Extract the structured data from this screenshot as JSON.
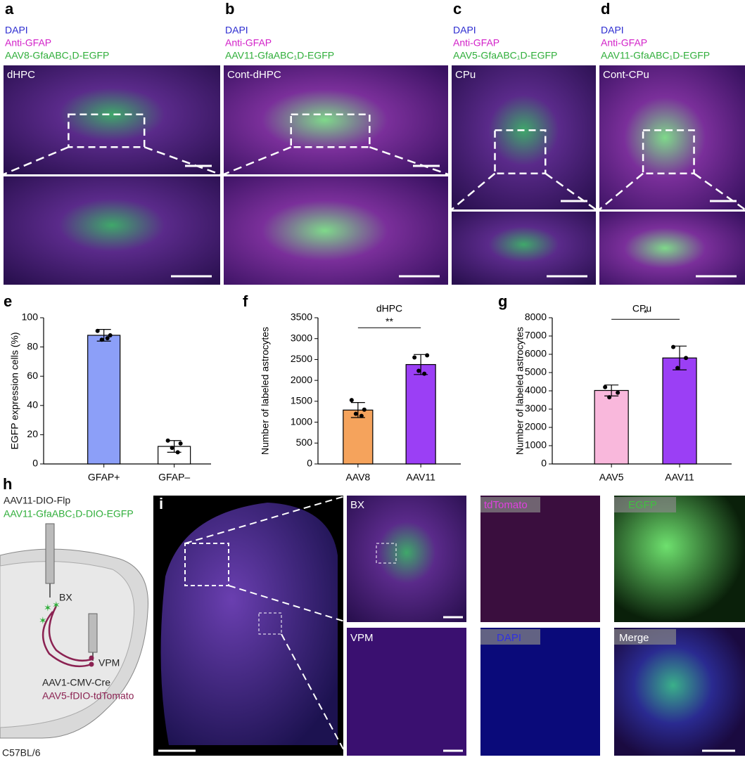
{
  "panels": {
    "a": {
      "letter": "a",
      "lines": [
        "DAPI",
        "Anti-GFAP",
        "AAV8-GfaABC₁D-EGFP"
      ],
      "region": "dHPC"
    },
    "b": {
      "letter": "b",
      "lines": [
        "DAPI",
        "Anti-GFAP",
        "AAV11-GfaABC₁D-EGFP"
      ],
      "region": "Cont-dHPC"
    },
    "c": {
      "letter": "c",
      "lines": [
        "DAPI",
        "Anti-GFAP",
        "AAV5-GfaABC₁D-EGFP"
      ],
      "region": "CPu"
    },
    "d": {
      "letter": "d",
      "lines": [
        "DAPI",
        "Anti-GFAP",
        "AAV11-GfaABC₁D-EGFP"
      ],
      "region": "Cont-CPu"
    },
    "h": {
      "letter": "h",
      "virus_1": "AAV11-DIO-Flp",
      "virus_2": "AAV11-GfaABC₁D-DIO-EGFP",
      "site_1": "BX",
      "site_2": "VPM",
      "virus_3": "AAV1-CMV-Cre",
      "virus_4": "AAV5-fDIO-tdTomato",
      "strain": "C57BL/6"
    },
    "i": {
      "letter": "i",
      "labels": [
        "BX",
        "tdTomato",
        "EGFP",
        "VPM",
        "DAPI",
        "Merge"
      ]
    }
  },
  "chart_data": [
    {
      "type": "bar",
      "panel": "e",
      "ylabel": "EGFP expression cells (%)",
      "categories": [
        "GFAP+",
        "GFAP–"
      ],
      "values": [
        88,
        12
      ],
      "errors": [
        4,
        4
      ],
      "points": [
        [
          91,
          88,
          85,
          86
        ],
        [
          16,
          14,
          11,
          8
        ]
      ],
      "colors": [
        "#8c9ff8",
        "#ffffff"
      ],
      "ylim": [
        0,
        100
      ],
      "yticks": [
        0,
        20,
        40,
        60,
        80,
        100
      ]
    },
    {
      "type": "bar",
      "panel": "f",
      "title": "dHPC",
      "ylabel": "Number of labeled astrocytes",
      "categories": [
        "AAV8",
        "AAV11"
      ],
      "values": [
        1290,
        2380
      ],
      "errors": [
        180,
        240
      ],
      "points": [
        [
          1530,
          1300,
          1200,
          1150
        ],
        [
          2550,
          2600,
          2230,
          2160
        ]
      ],
      "colors": [
        "#f5a35c",
        "#9b3ff5"
      ],
      "significance": "**",
      "ylim": [
        0,
        3500
      ],
      "yticks": [
        0,
        500,
        1000,
        1500,
        2000,
        2500,
        3000,
        3500
      ]
    },
    {
      "type": "bar",
      "panel": "g",
      "title": "CPu",
      "ylabel": "Number of labeled astrocytes",
      "categories": [
        "AAV5",
        "AAV11"
      ],
      "values": [
        4020,
        5800
      ],
      "errors": [
        300,
        650
      ],
      "points": [
        [
          4200,
          3900,
          3650
        ],
        [
          6400,
          5800,
          5250
        ]
      ],
      "colors": [
        "#f9b8dc",
        "#9b3ff5"
      ],
      "significance": "*",
      "ylim": [
        0,
        8000
      ],
      "yticks": [
        0,
        1000,
        2000,
        3000,
        4000,
        5000,
        6000,
        7000,
        8000
      ]
    }
  ]
}
